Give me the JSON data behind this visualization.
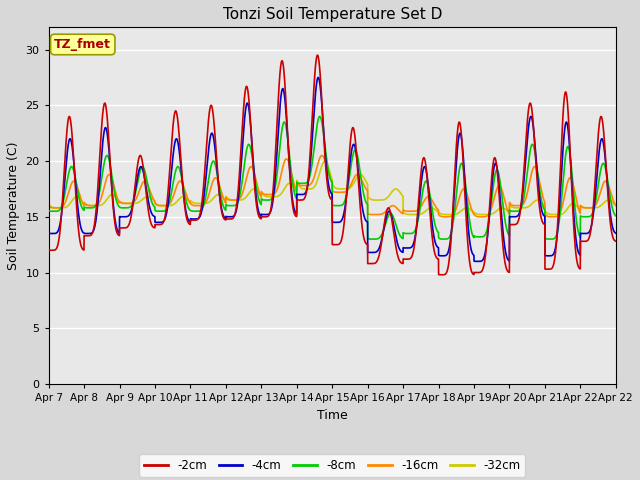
{
  "title": "Tonzi Soil Temperature Set D",
  "xlabel": "Time",
  "ylabel": "Soil Temperature (C)",
  "ylim": [
    0,
    32
  ],
  "yticks": [
    0,
    5,
    10,
    15,
    20,
    25,
    30
  ],
  "legend_labels": [
    "-2cm",
    "-4cm",
    "-8cm",
    "-16cm",
    "-32cm"
  ],
  "legend_colors": [
    "#cc0000",
    "#0000cc",
    "#00cc00",
    "#ff8800",
    "#cccc00"
  ],
  "annotation_text": "TZ_fmet",
  "annotation_color": "#aa0000",
  "annotation_bg": "#ffff99",
  "fig_bg": "#d8d8d8",
  "plot_bg": "#e8e8e8",
  "xticklabels": [
    "Apr 7",
    "Apr 8",
    "Apr 9",
    "Apr 10",
    "Apr 11",
    "Apr 12",
    "Apr 13",
    "Apr 14",
    "Apr 15",
    "Apr 16",
    "Apr 17",
    "Apr 18",
    "Apr 19",
    "Apr 20",
    "Apr 21",
    "Apr 22",
    "Apr 22"
  ],
  "n_days": 16,
  "n_pts": 288,
  "day_peaks_2cm": [
    24.0,
    25.2,
    20.5,
    24.5,
    25.0,
    26.7,
    29.0,
    29.5,
    23.0,
    15.8,
    20.3,
    23.5,
    20.3,
    25.2,
    26.2,
    24.0
  ],
  "day_mins_2cm": [
    12.0,
    13.3,
    14.0,
    14.3,
    14.7,
    14.8,
    15.0,
    16.5,
    12.5,
    10.8,
    11.2,
    9.8,
    10.0,
    14.3,
    10.3,
    12.8
  ],
  "day_peaks_4cm": [
    22.0,
    23.0,
    19.5,
    22.0,
    22.5,
    25.2,
    26.5,
    27.5,
    21.5,
    15.5,
    19.5,
    22.5,
    19.8,
    24.0,
    23.5,
    22.0
  ],
  "day_mins_4cm": [
    13.5,
    13.5,
    15.0,
    14.5,
    14.8,
    15.0,
    15.2,
    17.0,
    14.5,
    11.8,
    12.2,
    11.5,
    11.0,
    15.0,
    11.5,
    13.5
  ],
  "day_peaks_8cm": [
    19.5,
    20.5,
    19.5,
    19.5,
    20.0,
    21.5,
    23.5,
    24.0,
    21.0,
    15.3,
    18.2,
    19.8,
    19.2,
    21.5,
    21.3,
    19.8
  ],
  "day_mins_8cm": [
    15.5,
    15.8,
    15.8,
    15.5,
    15.5,
    16.0,
    16.5,
    18.0,
    16.0,
    13.0,
    13.5,
    13.0,
    13.2,
    15.5,
    13.0,
    15.0
  ],
  "day_peaks_16cm": [
    18.2,
    18.8,
    18.2,
    18.2,
    18.5,
    19.5,
    20.2,
    20.5,
    18.8,
    16.0,
    16.8,
    17.5,
    17.8,
    19.5,
    18.5,
    18.2
  ],
  "day_mins_16cm": [
    15.8,
    16.0,
    16.2,
    16.0,
    16.0,
    16.5,
    17.0,
    17.8,
    17.2,
    15.2,
    15.5,
    15.0,
    15.0,
    16.0,
    15.0,
    15.8
  ],
  "day_peaks_32cm": [
    16.8,
    17.0,
    16.8,
    16.8,
    17.0,
    17.5,
    18.0,
    20.0,
    18.8,
    17.5,
    15.8,
    15.8,
    15.8,
    16.5,
    16.2,
    16.5
  ],
  "day_mins_32cm": [
    15.8,
    16.0,
    16.2,
    16.0,
    16.2,
    16.5,
    16.8,
    17.5,
    17.5,
    16.5,
    15.2,
    15.2,
    15.2,
    15.8,
    15.2,
    15.8
  ],
  "phase_offsets_hrs": [
    0,
    0.5,
    1.5,
    3.0,
    5.0
  ]
}
